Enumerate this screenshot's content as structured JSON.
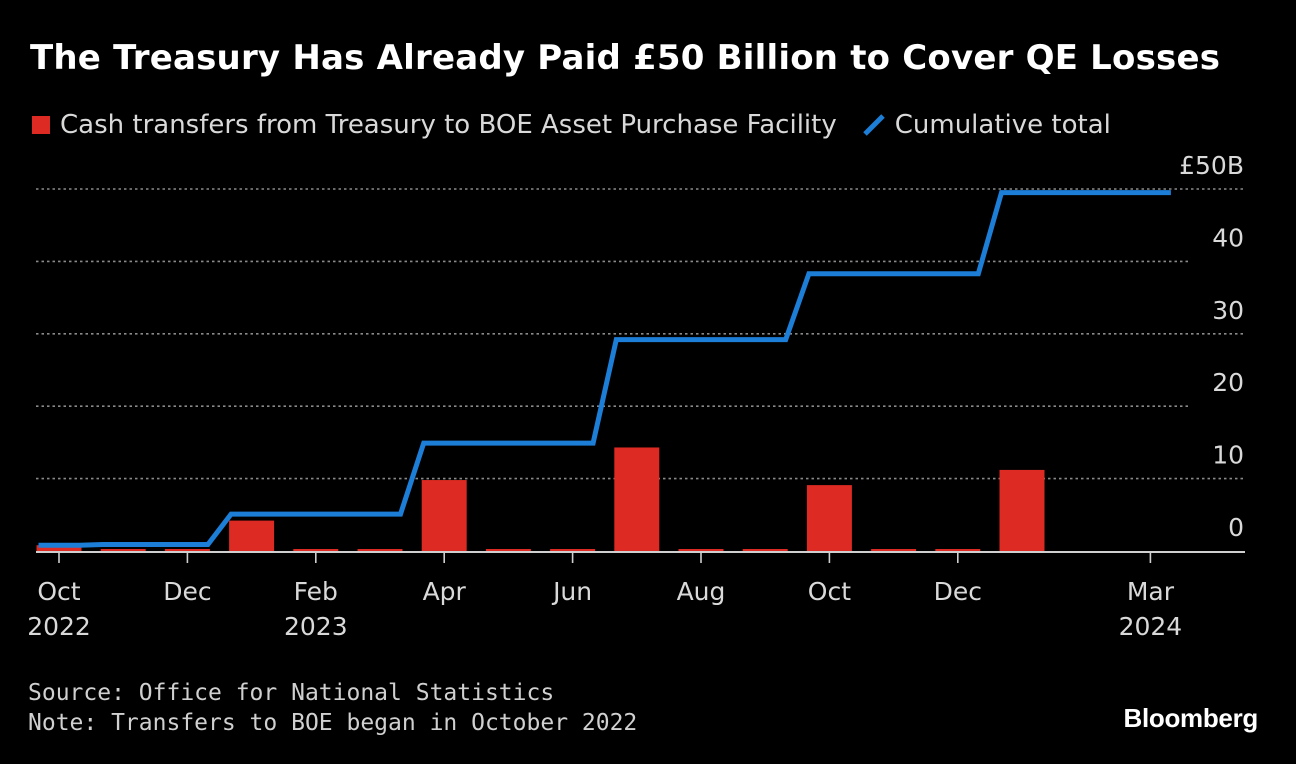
{
  "title": "The Treasury Has Already Paid £50 Billion to Cover QE Losses",
  "legend": {
    "bar_label": "Cash transfers from Treasury to BOE Asset Purchase Facility",
    "line_label": "Cumulative total"
  },
  "colors": {
    "bar": "#dd2a22",
    "line": "#1c7ed6",
    "grid": "#8a8a8a",
    "axis": "#cfcfcf"
  },
  "chart_data": {
    "type": "bar",
    "categories": [
      "Oct 2022",
      "Nov 2022",
      "Dec 2022",
      "Jan 2023",
      "Feb 2023",
      "Mar 2023",
      "Apr 2023",
      "May 2023",
      "Jun 2023",
      "Jul 2023",
      "Aug 2023",
      "Sep 2023",
      "Oct 2023",
      "Nov 2023",
      "Dec 2023",
      "Jan 2024",
      "Feb 2024",
      "Mar 2024"
    ],
    "series": [
      {
        "name": "Cash transfers from Treasury to BOE Asset Purchase Facility",
        "type": "bar",
        "values": [
          0.8,
          0.1,
          0.1,
          4.2,
          0.1,
          0.1,
          9.8,
          0.1,
          0.1,
          14.3,
          0.1,
          0.1,
          9.1,
          0.1,
          0.1,
          11.2,
          null,
          null
        ]
      },
      {
        "name": "Cumulative total",
        "type": "line",
        "values": [
          0.8,
          0.9,
          0.9,
          5.1,
          5.1,
          5.1,
          14.9,
          14.9,
          14.9,
          29.2,
          29.2,
          29.2,
          38.3,
          38.3,
          38.3,
          49.5,
          49.5,
          49.5
        ]
      }
    ],
    "ylim": [
      0,
      50
    ],
    "yticks": [
      {
        "value": 50,
        "label": "£50B"
      },
      {
        "value": 40,
        "label": "40"
      },
      {
        "value": 30,
        "label": "30"
      },
      {
        "value": 20,
        "label": "20"
      },
      {
        "value": 10,
        "label": "10"
      },
      {
        "value": 0,
        "label": "0"
      }
    ],
    "xticks": [
      {
        "index": 0,
        "line1": "Oct",
        "line2": "2022"
      },
      {
        "index": 2,
        "line1": "Dec",
        "line2": ""
      },
      {
        "index": 4,
        "line1": "Feb",
        "line2": "2023"
      },
      {
        "index": 6,
        "line1": "Apr",
        "line2": ""
      },
      {
        "index": 8,
        "line1": "Jun",
        "line2": ""
      },
      {
        "index": 10,
        "line1": "Aug",
        "line2": ""
      },
      {
        "index": 12,
        "line1": "Oct",
        "line2": ""
      },
      {
        "index": 14,
        "line1": "Dec",
        "line2": ""
      },
      {
        "index": 17,
        "line1": "Mar",
        "line2": "2024"
      }
    ]
  },
  "footer": {
    "source": "Source: Office for National Statistics",
    "note": "Note: Transfers to BOE began in October 2022"
  },
  "brand": "Bloomberg"
}
